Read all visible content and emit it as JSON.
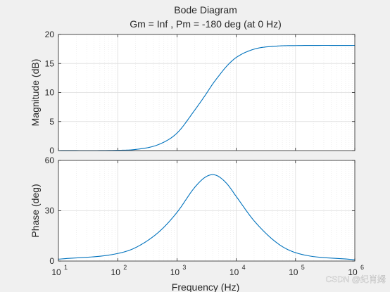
{
  "chart_data": {
    "type": "line",
    "title": "Bode Diagram",
    "subtitle": "Gm = Inf ,  Pm = -180 deg (at 0 Hz)",
    "xlabel": "Frequency  (Hz)",
    "x_scale": "log",
    "x_range": [
      10,
      1000000
    ],
    "x_ticks": [
      {
        "base": "10",
        "exp": "1"
      },
      {
        "base": "10",
        "exp": "2"
      },
      {
        "base": "10",
        "exp": "3"
      },
      {
        "base": "10",
        "exp": "4"
      },
      {
        "base": "10",
        "exp": "5"
      },
      {
        "base": "10",
        "exp": "6"
      }
    ],
    "x_tick_values": [
      10,
      100,
      1000,
      10000,
      100000,
      1000000
    ],
    "grid": true,
    "line_color": "#0072bd",
    "panels": [
      {
        "name": "magnitude",
        "ylabel": "Magnitude (dB)",
        "ylim": [
          0,
          20
        ],
        "y_ticks": [
          "0",
          "5",
          "10",
          "15",
          "20"
        ],
        "y_tick_values": [
          0,
          5,
          10,
          15,
          20
        ],
        "x": [
          10,
          100,
          200,
          500,
          1000,
          2000,
          3000,
          4000,
          5000,
          7000,
          10000,
          20000,
          50000,
          100000,
          1000000
        ],
        "y": [
          0.0,
          0.05,
          0.19,
          1.08,
          3.01,
          6.99,
          9.54,
          11.46,
          12.78,
          14.61,
          16.04,
          17.47,
          18.01,
          18.09,
          18.12
        ]
      },
      {
        "name": "phase",
        "ylabel": "Phase (deg)",
        "ylim": [
          0,
          60
        ],
        "y_ticks": [
          "0",
          "30",
          "60"
        ],
        "y_tick_values": [
          0,
          30,
          60
        ],
        "x": [
          10,
          100,
          200,
          500,
          1000,
          2000,
          3000,
          4000,
          5000,
          7000,
          10000,
          20000,
          50000,
          100000,
          1000000
        ],
        "y": [
          1.1,
          4.5,
          8.0,
          17.5,
          29.0,
          44.0,
          50.0,
          51.5,
          50.5,
          46.0,
          38.5,
          24.0,
          10.5,
          5.0,
          0.7
        ]
      }
    ]
  },
  "watermark": "CSDN @纪肖姆"
}
